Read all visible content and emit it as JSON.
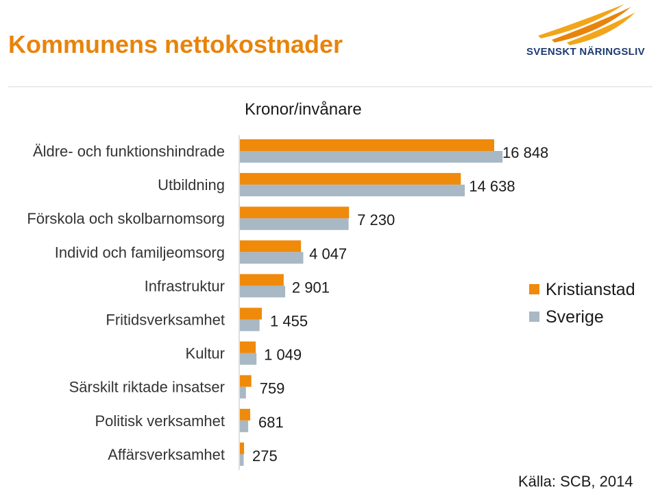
{
  "title": "Kommunens nettokostnader",
  "logo": {
    "text": "SVENSKT NÄRINGSLIV",
    "colors": [
      "#f2a51a",
      "#e8840b"
    ]
  },
  "source": "Källa: SCB, 2014",
  "colors": {
    "title": "#e8840b",
    "kristianstad": "#f08a0a",
    "sverige": "#a8b8c4"
  },
  "chart_data": {
    "type": "bar",
    "orientation": "horizontal",
    "title": "Kronor/invånare",
    "xlabel": "",
    "ylabel": "",
    "categories": [
      "Äldre- och funktionshindrade",
      "Utbildning",
      "Förskola och skolbarnomsorg",
      "Individ och familjeomsorg",
      "Infrastruktur",
      "Fritidsverksamhet",
      "Kultur",
      "Särskilt riktade insatser",
      "Politisk verksamhet",
      "Affärsverksamhet"
    ],
    "series": [
      {
        "name": "Kristianstad",
        "color": "#f08a0a",
        "values": [
          16848,
          14638,
          7230,
          4047,
          2901,
          1455,
          1049,
          759,
          681,
          275
        ],
        "labels": [
          "16 848",
          "14 638",
          "7 230",
          "4 047",
          "2 901",
          "1 455",
          "1 049",
          "759",
          "681",
          "275"
        ]
      },
      {
        "name": "Sverige",
        "color": "#a8b8c4",
        "values": [
          17400,
          14900,
          7200,
          4200,
          3000,
          1300,
          1100,
          400,
          550,
          250
        ]
      }
    ],
    "xlim": [
      0,
      18000
    ],
    "grid": false,
    "legend_position": "right"
  }
}
